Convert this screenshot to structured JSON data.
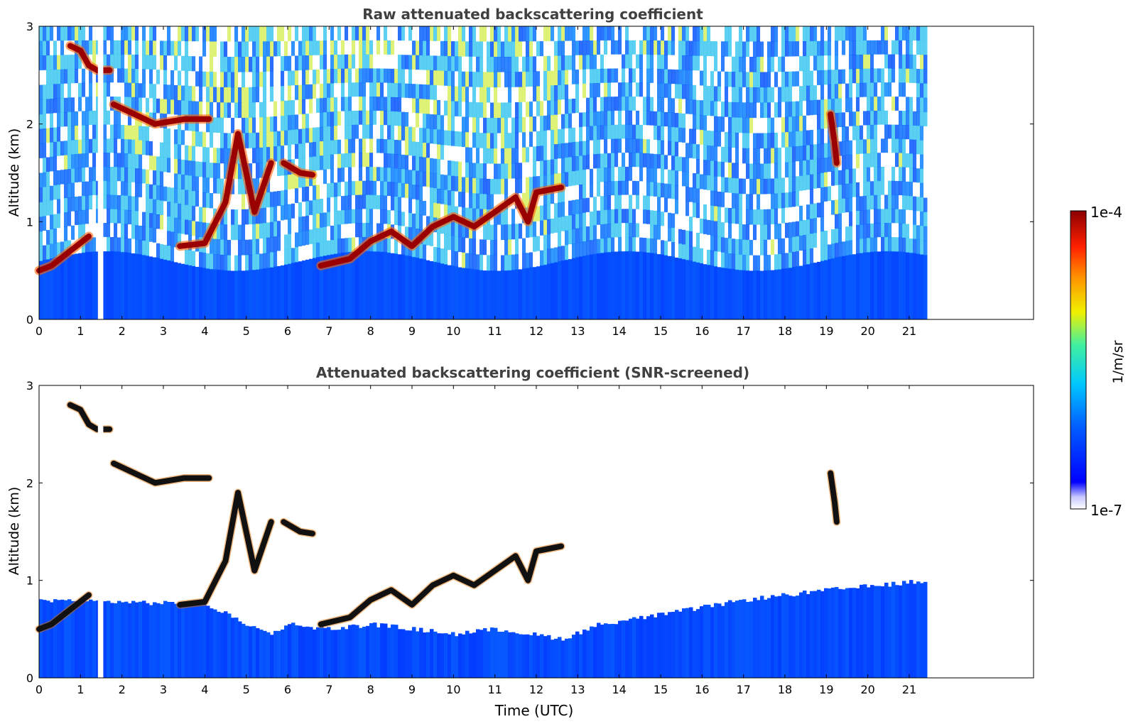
{
  "chart_data": [
    {
      "type": "heatmap",
      "title": "Raw attenuated backscattering coefficient",
      "xlabel": "",
      "ylabel": "Altitude (km)",
      "xlim": [
        0,
        24
      ],
      "ylim": [
        0,
        3
      ],
      "x_ticks": [
        "0",
        "1",
        "2",
        "3",
        "4",
        "5",
        "6",
        "7",
        "8",
        "9",
        "10",
        "11",
        "12",
        "13",
        "14",
        "15",
        "16",
        "17",
        "18",
        "19",
        "20",
        "21"
      ],
      "y_ticks": [
        "0",
        "1",
        "2",
        "3"
      ],
      "data_extent_hours": [
        0,
        21.5
      ],
      "data_gap_hours": [
        1.42,
        1.55
      ],
      "layers": [
        {
          "altitude_km": [
            0.0,
            0.6
          ],
          "level": "low (blue)"
        },
        {
          "altitude_km": [
            0.6,
            2.9
          ],
          "level": "noise (blue/cyan/yellow speckle)"
        }
      ],
      "cloud_features": [
        {
          "kind": "strong (dark red)",
          "points": [
            [
              0.0,
              0.5
            ],
            [
              0.3,
              0.55
            ],
            [
              0.6,
              0.65
            ],
            [
              0.9,
              0.75
            ],
            [
              1.2,
              0.85
            ]
          ]
        },
        {
          "kind": "strong (dark red)",
          "points": [
            [
              0.75,
              2.8
            ],
            [
              1.0,
              2.75
            ],
            [
              1.2,
              2.6
            ],
            [
              1.4,
              2.55
            ],
            [
              1.7,
              2.55
            ]
          ]
        },
        {
          "kind": "strong (dark red)",
          "points": [
            [
              1.8,
              2.2
            ],
            [
              2.3,
              2.1
            ],
            [
              2.8,
              2.0
            ],
            [
              3.5,
              2.05
            ],
            [
              4.1,
              2.05
            ]
          ]
        },
        {
          "kind": "strong (dark red)",
          "points": [
            [
              3.4,
              0.75
            ],
            [
              4.0,
              0.78
            ],
            [
              4.5,
              1.2
            ],
            [
              4.8,
              1.9
            ],
            [
              5.2,
              1.1
            ],
            [
              5.6,
              1.6
            ]
          ]
        },
        {
          "kind": "strong (dark red)",
          "points": [
            [
              5.9,
              1.6
            ],
            [
              6.3,
              1.5
            ],
            [
              6.6,
              1.48
            ]
          ]
        },
        {
          "kind": "strong (dark red)",
          "points": [
            [
              6.8,
              0.55
            ],
            [
              7.5,
              0.62
            ],
            [
              8.0,
              0.8
            ],
            [
              8.5,
              0.9
            ],
            [
              9.0,
              0.75
            ],
            [
              9.5,
              0.95
            ],
            [
              10.0,
              1.05
            ],
            [
              10.5,
              0.95
            ],
            [
              11.0,
              1.1
            ],
            [
              11.5,
              1.25
            ],
            [
              11.8,
              1.0
            ],
            [
              12.0,
              1.3
            ],
            [
              12.6,
              1.35
            ]
          ]
        },
        {
          "kind": "strong (dark red)",
          "points": [
            [
              19.1,
              2.1
            ],
            [
              19.2,
              1.8
            ],
            [
              19.25,
              1.6
            ]
          ]
        }
      ]
    },
    {
      "type": "heatmap",
      "title": "Attenuated backscattering coefficient (SNR-screened)",
      "xlabel": "Time (UTC)",
      "ylabel": "Altitude (km)",
      "xlim": [
        0,
        24
      ],
      "ylim": [
        0,
        3
      ],
      "x_ticks": [
        "0",
        "1",
        "2",
        "3",
        "4",
        "5",
        "6",
        "7",
        "8",
        "9",
        "10",
        "11",
        "12",
        "13",
        "14",
        "15",
        "16",
        "17",
        "18",
        "19",
        "20",
        "21"
      ],
      "y_ticks": [
        "0",
        "1",
        "2",
        "3"
      ],
      "data_extent_hours": [
        0,
        21.5
      ],
      "data_gap_hours": [
        1.42,
        1.55
      ],
      "boundary_layer_top_km": [
        [
          0,
          0.8
        ],
        [
          2,
          0.78
        ],
        [
          4,
          0.75
        ],
        [
          5.5,
          0.45
        ],
        [
          6,
          0.55
        ],
        [
          7,
          0.5
        ],
        [
          8,
          0.55
        ],
        [
          9,
          0.5
        ],
        [
          10,
          0.45
        ],
        [
          11,
          0.5
        ],
        [
          12.6,
          0.4
        ],
        [
          13.5,
          0.55
        ],
        [
          15,
          0.65
        ],
        [
          17,
          0.8
        ],
        [
          19,
          0.9
        ],
        [
          21.5,
          1.0
        ]
      ],
      "cloud_features": [
        {
          "kind": "strong (black)",
          "points": [
            [
              0.0,
              0.5
            ],
            [
              0.3,
              0.55
            ],
            [
              0.6,
              0.65
            ],
            [
              0.9,
              0.75
            ],
            [
              1.2,
              0.85
            ]
          ]
        },
        {
          "kind": "strong (black)",
          "points": [
            [
              0.75,
              2.8
            ],
            [
              1.0,
              2.75
            ],
            [
              1.2,
              2.6
            ],
            [
              1.4,
              2.55
            ],
            [
              1.7,
              2.55
            ]
          ]
        },
        {
          "kind": "strong (black)",
          "points": [
            [
              1.8,
              2.2
            ],
            [
              2.3,
              2.1
            ],
            [
              2.8,
              2.0
            ],
            [
              3.5,
              2.05
            ],
            [
              4.1,
              2.05
            ]
          ]
        },
        {
          "kind": "strong (black)",
          "points": [
            [
              3.4,
              0.75
            ],
            [
              4.0,
              0.78
            ],
            [
              4.5,
              1.2
            ],
            [
              4.8,
              1.9
            ],
            [
              5.2,
              1.1
            ],
            [
              5.6,
              1.6
            ]
          ]
        },
        {
          "kind": "strong (black)",
          "points": [
            [
              5.9,
              1.6
            ],
            [
              6.3,
              1.5
            ],
            [
              6.6,
              1.48
            ]
          ]
        },
        {
          "kind": "strong (black)",
          "points": [
            [
              6.8,
              0.55
            ],
            [
              7.5,
              0.62
            ],
            [
              8.0,
              0.8
            ],
            [
              8.5,
              0.9
            ],
            [
              9.0,
              0.75
            ],
            [
              9.5,
              0.95
            ],
            [
              10.0,
              1.05
            ],
            [
              10.5,
              0.95
            ],
            [
              11.0,
              1.1
            ],
            [
              11.5,
              1.25
            ],
            [
              11.8,
              1.0
            ],
            [
              12.0,
              1.3
            ],
            [
              12.6,
              1.35
            ]
          ]
        },
        {
          "kind": "strong (black)",
          "points": [
            [
              19.1,
              2.1
            ],
            [
              19.2,
              1.8
            ],
            [
              19.25,
              1.6
            ]
          ]
        }
      ]
    }
  ],
  "colorbar": {
    "label": "1/m/sr",
    "max_label": "1e-4",
    "min_label": "1e-7",
    "colors": [
      "#ffffff",
      "#d6d6ff",
      "#a9a9ff",
      "#0000ff",
      "#0a3cff",
      "#0080ff",
      "#00b0ff",
      "#00e0f0",
      "#40f0a0",
      "#a0f060",
      "#f0f000",
      "#ffc000",
      "#ff8000",
      "#ff3000",
      "#d00000",
      "#8b0000"
    ]
  }
}
